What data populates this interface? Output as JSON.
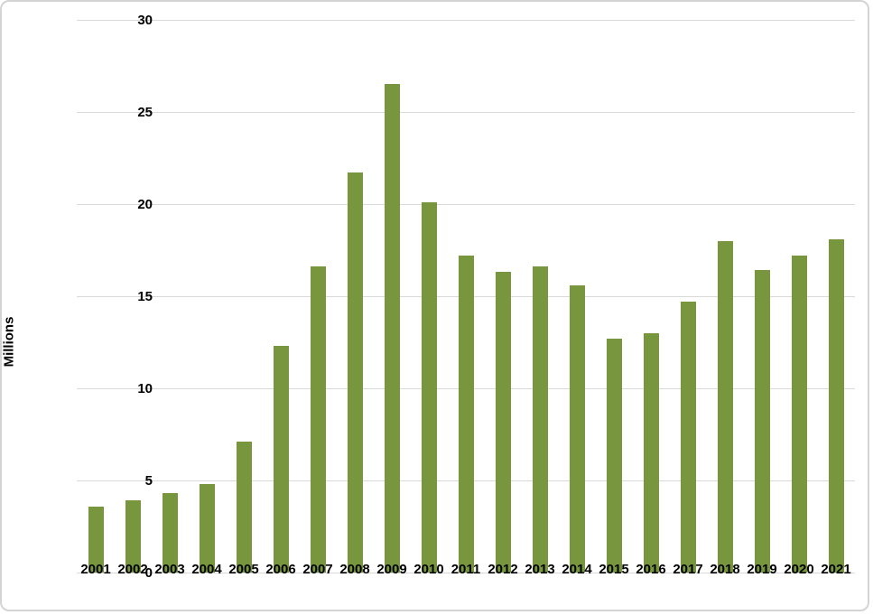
{
  "chart_data": {
    "type": "bar",
    "title": "",
    "xlabel": "",
    "ylabel": "Millions",
    "categories": [
      "2001",
      "2002",
      "2003",
      "2004",
      "2005",
      "2006",
      "2007",
      "2008",
      "2009",
      "2010",
      "2011",
      "2012",
      "2013",
      "2014",
      "2015",
      "2016",
      "2017",
      "2018",
      "2019",
      "2020",
      "2021"
    ],
    "values": [
      3.6,
      3.9,
      4.3,
      4.8,
      7.1,
      12.3,
      16.6,
      21.7,
      26.5,
      20.1,
      17.2,
      16.3,
      16.6,
      15.6,
      12.7,
      13.0,
      14.7,
      18.0,
      16.4,
      17.2,
      18.1
    ],
    "ylim": [
      0,
      30
    ],
    "yticks": [
      0,
      5,
      10,
      15,
      20,
      25,
      30
    ],
    "grid": "horizontal",
    "legend": "none",
    "bar_color": "#78963e",
    "gridline_color": "#d9d9d9",
    "axis_text_color": "#000000",
    "frame_border_color": "#d4d4d4",
    "background_color": "#ffffff"
  }
}
